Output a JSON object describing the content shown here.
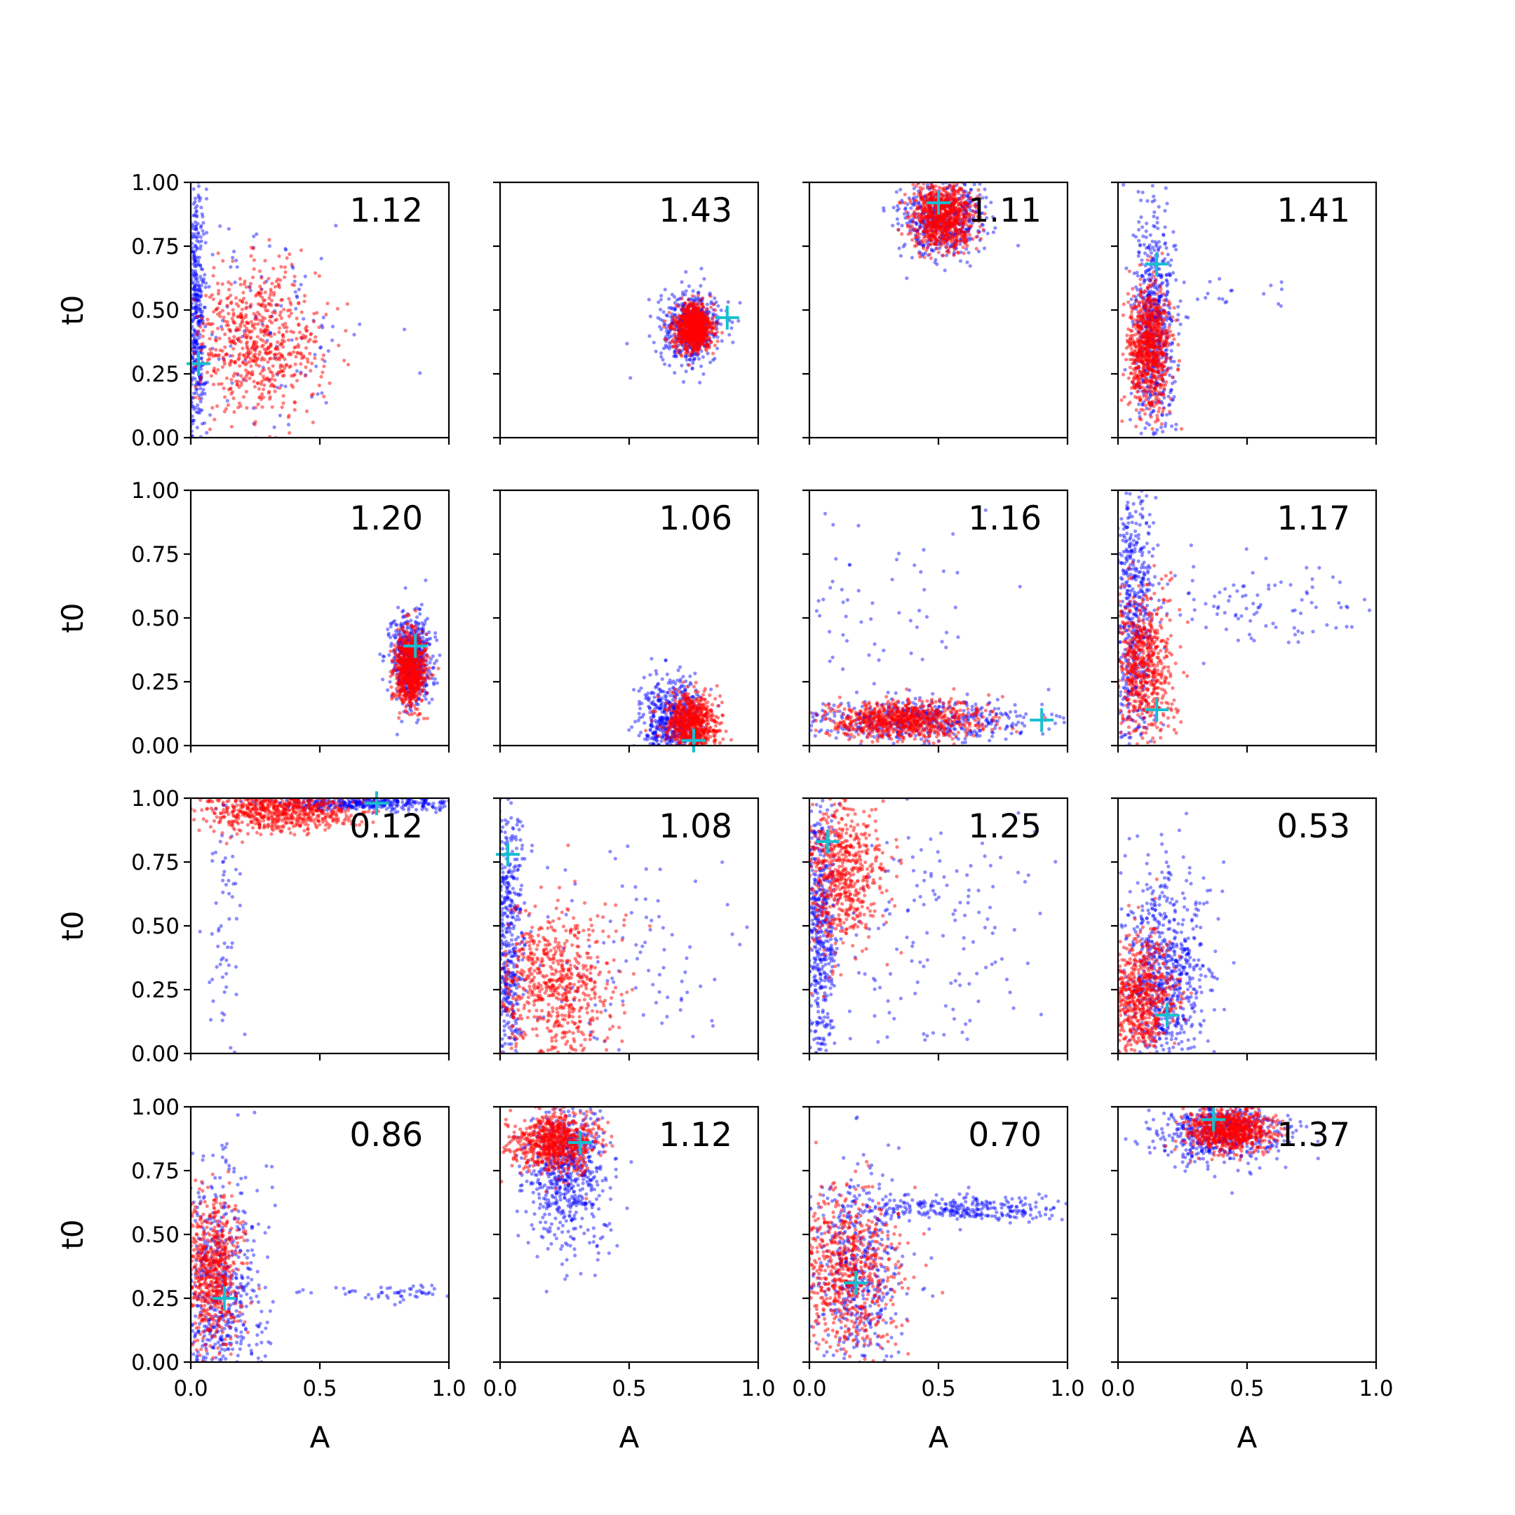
{
  "chart_data": {
    "type": "scatter",
    "layout": "4x4 grid of scatter subplots",
    "xlabel": "A",
    "ylabel": "t0",
    "xlim": [
      0,
      1
    ],
    "ylim": [
      0,
      1
    ],
    "x_ticks": [
      "0.0",
      "0.5",
      "1.0"
    ],
    "y_ticks": [
      "0.00",
      "0.25",
      "0.50",
      "0.75",
      "1.00"
    ],
    "colors": {
      "series_a": "#0000ff",
      "series_b": "#ff0000",
      "marker": "#17becf"
    },
    "grid": false,
    "legend": "none",
    "note": "Each subplot: blue and red sample clouds; cyan '+' marks a reference point; number in top-right corner is printed in the panel.",
    "panels": [
      {
        "label": "1.12",
        "marker": [
          0.03,
          0.29
        ],
        "red": {
          "cx": 0.26,
          "cy": 0.38,
          "sx": 0.12,
          "sy": 0.14,
          "n": 650
        },
        "blue": [
          {
            "cx": 0.02,
            "cy": 0.5,
            "sx": 0.02,
            "sy": 0.28,
            "n": 450
          },
          {
            "cx": 0.3,
            "cy": 0.45,
            "sx": 0.2,
            "sy": 0.22,
            "n": 120
          }
        ]
      },
      {
        "label": "1.43",
        "marker": [
          0.88,
          0.47
        ],
        "red": {
          "cx": 0.75,
          "cy": 0.43,
          "sx": 0.035,
          "sy": 0.045,
          "n": 900
        },
        "blue": [
          {
            "cx": 0.74,
            "cy": 0.43,
            "sx": 0.06,
            "sy": 0.07,
            "n": 500
          }
        ]
      },
      {
        "label": "1.11",
        "marker": [
          0.5,
          0.92
        ],
        "red": {
          "cx": 0.52,
          "cy": 0.87,
          "sx": 0.06,
          "sy": 0.06,
          "n": 850
        },
        "blue": [
          {
            "cx": 0.51,
            "cy": 0.86,
            "sx": 0.08,
            "sy": 0.08,
            "n": 500
          }
        ]
      },
      {
        "label": "1.41",
        "marker": [
          0.15,
          0.68
        ],
        "red": {
          "cx": 0.12,
          "cy": 0.35,
          "sx": 0.04,
          "sy": 0.12,
          "n": 800
        },
        "blue": [
          {
            "cx": 0.14,
            "cy": 0.45,
            "sx": 0.04,
            "sy": 0.22,
            "n": 600
          },
          {
            "cx": 0.4,
            "cy": 0.55,
            "sx": 0.18,
            "sy": 0.05,
            "n": 25
          }
        ]
      },
      {
        "label": "1.20",
        "marker": [
          0.87,
          0.39
        ],
        "red": {
          "cx": 0.85,
          "cy": 0.3,
          "sx": 0.03,
          "sy": 0.07,
          "n": 800
        },
        "blue": [
          {
            "cx": 0.85,
            "cy": 0.33,
            "sx": 0.04,
            "sy": 0.09,
            "n": 550
          }
        ]
      },
      {
        "label": "1.06",
        "marker": [
          0.75,
          0.02
        ],
        "red": {
          "cx": 0.74,
          "cy": 0.08,
          "sx": 0.05,
          "sy": 0.06,
          "n": 750
        },
        "blue": [
          {
            "cx": 0.66,
            "cy": 0.1,
            "sx": 0.06,
            "sy": 0.08,
            "n": 550
          }
        ]
      },
      {
        "label": "1.16",
        "marker": [
          0.9,
          0.1
        ],
        "red": {
          "cx": 0.35,
          "cy": 0.1,
          "sx": 0.15,
          "sy": 0.04,
          "n": 800
        },
        "blue": [
          {
            "cx": 0.4,
            "cy": 0.1,
            "sx": 0.25,
            "sy": 0.04,
            "n": 500
          },
          {
            "cx": 0.25,
            "cy": 0.5,
            "sx": 0.2,
            "sy": 0.25,
            "n": 70
          }
        ]
      },
      {
        "label": "1.17",
        "marker": [
          0.15,
          0.14
        ],
        "red": {
          "cx": 0.1,
          "cy": 0.3,
          "sx": 0.06,
          "sy": 0.15,
          "n": 650
        },
        "blue": [
          {
            "cx": 0.06,
            "cy": 0.5,
            "sx": 0.04,
            "sy": 0.28,
            "n": 550
          },
          {
            "cx": 0.55,
            "cy": 0.55,
            "sx": 0.22,
            "sy": 0.1,
            "n": 100
          }
        ]
      },
      {
        "label": "0.12",
        "marker": [
          0.72,
          0.98
        ],
        "red": {
          "cx": 0.35,
          "cy": 0.95,
          "sx": 0.15,
          "sy": 0.04,
          "n": 700
        },
        "blue": [
          {
            "cx": 0.7,
            "cy": 0.98,
            "sx": 0.2,
            "sy": 0.015,
            "n": 400
          },
          {
            "cx": 0.12,
            "cy": 0.45,
            "sx": 0.04,
            "sy": 0.25,
            "n": 60
          }
        ]
      },
      {
        "label": "1.08",
        "marker": [
          0.03,
          0.78
        ],
        "red": {
          "cx": 0.2,
          "cy": 0.25,
          "sx": 0.12,
          "sy": 0.15,
          "n": 700
        },
        "blue": [
          {
            "cx": 0.03,
            "cy": 0.45,
            "sx": 0.03,
            "sy": 0.28,
            "n": 500
          },
          {
            "cx": 0.5,
            "cy": 0.35,
            "sx": 0.25,
            "sy": 0.25,
            "n": 120
          }
        ]
      },
      {
        "label": "1.25",
        "marker": [
          0.07,
          0.83
        ],
        "red": {
          "cx": 0.12,
          "cy": 0.7,
          "sx": 0.08,
          "sy": 0.15,
          "n": 650
        },
        "blue": [
          {
            "cx": 0.04,
            "cy": 0.5,
            "sx": 0.03,
            "sy": 0.28,
            "n": 500
          },
          {
            "cx": 0.45,
            "cy": 0.45,
            "sx": 0.25,
            "sy": 0.28,
            "n": 150
          }
        ]
      },
      {
        "label": "0.53",
        "marker": [
          0.19,
          0.15
        ],
        "red": {
          "cx": 0.08,
          "cy": 0.22,
          "sx": 0.07,
          "sy": 0.12,
          "n": 700
        },
        "blue": [
          {
            "cx": 0.18,
            "cy": 0.3,
            "sx": 0.08,
            "sy": 0.2,
            "n": 700
          }
        ]
      },
      {
        "label": "0.86",
        "marker": [
          0.13,
          0.25
        ],
        "red": {
          "cx": 0.08,
          "cy": 0.35,
          "sx": 0.06,
          "sy": 0.15,
          "n": 650
        },
        "blue": [
          {
            "cx": 0.12,
            "cy": 0.25,
            "sx": 0.08,
            "sy": 0.25,
            "n": 650
          },
          {
            "cx": 0.75,
            "cy": 0.27,
            "sx": 0.15,
            "sy": 0.015,
            "n": 60
          }
        ]
      },
      {
        "label": "1.12",
        "marker": [
          0.31,
          0.86
        ],
        "red": {
          "cx": 0.22,
          "cy": 0.86,
          "sx": 0.08,
          "sy": 0.06,
          "n": 750
        },
        "blue": [
          {
            "cx": 0.26,
            "cy": 0.75,
            "sx": 0.08,
            "sy": 0.15,
            "n": 650
          }
        ]
      },
      {
        "label": "0.70",
        "marker": [
          0.18,
          0.31
        ],
        "red": {
          "cx": 0.15,
          "cy": 0.35,
          "sx": 0.1,
          "sy": 0.15,
          "n": 700
        },
        "blue": [
          {
            "cx": 0.18,
            "cy": 0.35,
            "sx": 0.08,
            "sy": 0.2,
            "n": 450
          },
          {
            "cx": 0.6,
            "cy": 0.6,
            "sx": 0.22,
            "sy": 0.025,
            "n": 300
          }
        ]
      },
      {
        "label": "1.37",
        "marker": [
          0.37,
          0.95
        ],
        "red": {
          "cx": 0.43,
          "cy": 0.91,
          "sx": 0.08,
          "sy": 0.04,
          "n": 800
        },
        "blue": [
          {
            "cx": 0.4,
            "cy": 0.9,
            "sx": 0.12,
            "sy": 0.06,
            "n": 550
          }
        ]
      }
    ]
  }
}
